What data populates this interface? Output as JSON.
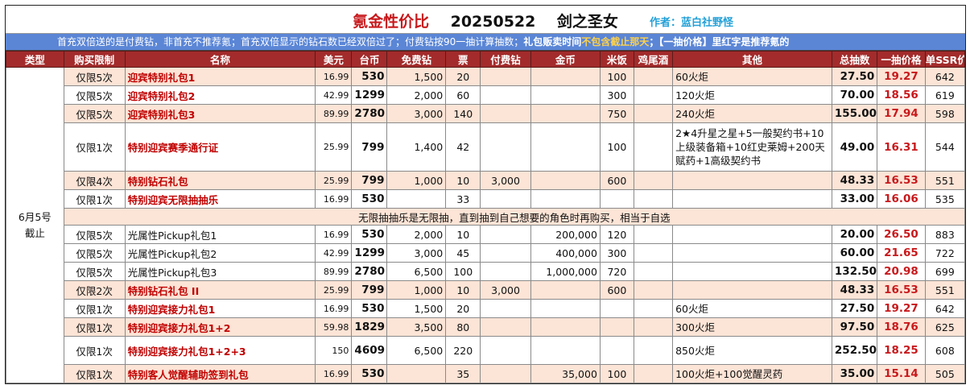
{
  "title": {
    "part1": "氪金性价比",
    "date": "20250522",
    "game": "剑之圣女",
    "author": "作者：蓝白社野怪"
  },
  "notice": {
    "part1": "首充双倍送的是付费钻，非首充不推荐氪；首充双倍显示的钻石数已经双倍过了；付费钻按90一抽计算抽数；",
    "bold": "礼包贩卖时间",
    "highlight": "不包含截止那天",
    "part3": "；【一抽价格】里红字是推荐氪的"
  },
  "headers": [
    "类型",
    "购买限制",
    "名称",
    "美元",
    "台币",
    "免费钻",
    "票",
    "付费钻",
    "金币",
    "米饭",
    "鸡尾酒",
    "其他",
    "总抽数",
    "一抽价格",
    "单SSR价"
  ],
  "type_label": [
    "6月5号",
    "截止"
  ],
  "note_row": "无限抽抽乐是无限抽，直到抽到自己想要的角色时再购买，相当于自选",
  "rows": [
    {
      "limit": "仅限5次",
      "name": "迎宾特别礼包1",
      "hot": true,
      "usd": "16.99",
      "twd": "530",
      "free": "1,500",
      "ticket": "20",
      "paid": "",
      "gold": "",
      "rice": "100",
      "cocktail": "",
      "other": "60火炬",
      "total": "27.50",
      "per": "19.27",
      "ssr": "642",
      "pink": true,
      "size": "normal"
    },
    {
      "limit": "仅限5次",
      "name": "迎宾特别礼包2",
      "hot": true,
      "usd": "42.99",
      "twd": "1299",
      "free": "2,000",
      "ticket": "60",
      "paid": "",
      "gold": "",
      "rice": "300",
      "cocktail": "",
      "other": "120火炬",
      "total": "70.00",
      "per": "18.56",
      "ssr": "619",
      "pink": false,
      "size": "normal"
    },
    {
      "limit": "仅限5次",
      "name": "迎宾特别礼包3",
      "hot": true,
      "usd": "89.99",
      "twd": "2780",
      "free": "3,000",
      "ticket": "140",
      "paid": "",
      "gold": "",
      "rice": "750",
      "cocktail": "",
      "other": "240火炬",
      "total": "155.00",
      "per": "17.94",
      "ssr": "598",
      "pink": true,
      "size": "normal"
    },
    {
      "limit": "仅限1次",
      "name": "特别迎宾赛季通行证",
      "hot": true,
      "usd": "25.99",
      "twd": "799",
      "free": "1,400",
      "ticket": "42",
      "paid": "",
      "gold": "",
      "rice": "100",
      "cocktail": "",
      "other": "2★4升星之星+5一般契约书+10上级装备箱+10红史莱姆+200天赋药+1高级契约书",
      "total": "49.00",
      "per": "16.31",
      "ssr": "544",
      "pink": false,
      "size": "tall"
    },
    {
      "limit": "仅限4次",
      "name": "特别钻石礼包",
      "hot": true,
      "usd": "25.99",
      "twd": "799",
      "free": "1,000",
      "ticket": "10",
      "paid": "3,000",
      "gold": "",
      "rice": "600",
      "cocktail": "",
      "other": "",
      "total": "48.33",
      "per": "16.53",
      "ssr": "551",
      "pink": true,
      "size": "normal"
    },
    {
      "limit": "仅限1次",
      "name": "特别迎宾无限抽抽乐",
      "hot": true,
      "usd": "16.99",
      "twd": "530",
      "free": "",
      "ticket": "33",
      "paid": "",
      "gold": "",
      "rice": "",
      "cocktail": "",
      "other": "",
      "total": "33.00",
      "per": "16.06",
      "ssr": "535",
      "pink": false,
      "size": "normal"
    },
    {
      "note": true
    },
    {
      "limit": "仅限5次",
      "name": "光属性Pickup礼包1",
      "hot": false,
      "usd": "16.99",
      "twd": "530",
      "free": "2,000",
      "ticket": "10",
      "paid": "",
      "gold": "200,000",
      "rice": "120",
      "cocktail": "",
      "other": "",
      "total": "20.00",
      "per": "26.50",
      "ssr": "883",
      "pink": false,
      "size": "normal"
    },
    {
      "limit": "仅限5次",
      "name": "光属性Pickup礼包2",
      "hot": false,
      "usd": "42.99",
      "twd": "1299",
      "free": "3,000",
      "ticket": "45",
      "paid": "",
      "gold": "400,000",
      "rice": "300",
      "cocktail": "",
      "other": "",
      "total": "60.00",
      "per": "21.65",
      "ssr": "722",
      "pink": false,
      "size": "normal"
    },
    {
      "limit": "仅限5次",
      "name": "光属性Pickup礼包3",
      "hot": false,
      "usd": "89.99",
      "twd": "2780",
      "free": "6,500",
      "ticket": "100",
      "paid": "",
      "gold": "1,000,000",
      "rice": "720",
      "cocktail": "",
      "other": "",
      "total": "132.50",
      "per": "20.98",
      "ssr": "699",
      "pink": false,
      "size": "normal"
    },
    {
      "limit": "仅限2次",
      "name": "特别钻石礼包 II",
      "hot": true,
      "usd": "25.99",
      "twd": "799",
      "free": "1,000",
      "ticket": "10",
      "paid": "3,000",
      "gold": "",
      "rice": "600",
      "cocktail": "",
      "other": "",
      "total": "48.33",
      "per": "16.53",
      "ssr": "551",
      "pink": true,
      "size": "normal"
    },
    {
      "limit": "仅限1次",
      "name": "特别迎宾接力礼包1",
      "hot": true,
      "usd": "16.99",
      "twd": "530",
      "free": "1,500",
      "ticket": "20",
      "paid": "",
      "gold": "",
      "rice": "",
      "cocktail": "",
      "other": "60火炬",
      "total": "27.50",
      "per": "19.27",
      "ssr": "642",
      "pink": false,
      "size": "normal"
    },
    {
      "limit": "仅限1次",
      "name": "特别迎宾接力礼包1+2",
      "hot": true,
      "usd": "59.98",
      "twd": "1829",
      "free": "3,500",
      "ticket": "80",
      "paid": "",
      "gold": "",
      "rice": "",
      "cocktail": "",
      "other": "300火炬",
      "total": "97.50",
      "per": "18.76",
      "ssr": "625",
      "pink": true,
      "size": "normal"
    },
    {
      "limit": "仅限1次",
      "name": "特别迎宾接力礼包1+2+3",
      "hot": true,
      "usd": "150",
      "twd": "4609",
      "free": "6,500",
      "ticket": "220",
      "paid": "",
      "gold": "",
      "rice": "",
      "cocktail": "",
      "other": "850火炬",
      "total": "252.50",
      "per": "18.25",
      "ssr": "608",
      "pink": false,
      "size": "mid"
    },
    {
      "limit": "仅限1次",
      "name": "特别客人觉醒辅助签到礼包",
      "hot": true,
      "usd": "16.99",
      "twd": "530",
      "free": "",
      "ticket": "35",
      "paid": "",
      "gold": "35,000",
      "rice": "100",
      "cocktail": "",
      "other": "100火炬+100觉醒灵药",
      "total": "35.00",
      "per": "15.14",
      "ssr": "505",
      "pink": true,
      "size": "normal"
    }
  ]
}
